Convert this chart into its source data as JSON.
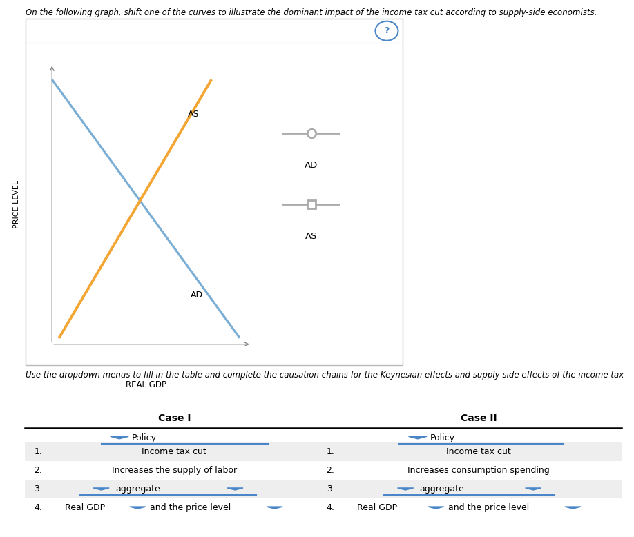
{
  "title_text": "On the following graph, shift one of the curves to illustrate the dominant impact of the income tax cut according to supply-side economists.",
  "xlabel": "REAL GDP",
  "ylabel": "PRICE LEVEL",
  "ad_color": "#7baed4",
  "as_color": "#f4a634",
  "ad_label": "AD",
  "as_label": "AS",
  "legend_ad_label": "AD",
  "legend_as_label": "AS",
  "legend_line_color": "#aaaaaa",
  "question_circle_color": "#4a86c8",
  "box_border": "#cccccc",
  "subtitle_text": "Use the dropdown menus to fill in the table and complete the causation chains for the Keynesian effects and supply-side effects of the income tax",
  "col1_header": "Policy",
  "col2_header": "Policy",
  "row1_col1": "Income tax cut",
  "row1_col2": "Income tax cut",
  "row2_col1": "Increases the supply of labor",
  "row2_col2": "Increases consumption spending",
  "row3_col1": "aggregate",
  "row3_col2": "aggregate",
  "row4_left": "Real GDP",
  "row4_right": "Real GDP",
  "row4_mid1": "and the price level",
  "row4_mid2": "and the price level",
  "dropdown_color": "#4a86c8",
  "row_bg_shaded": "#eeeeee",
  "case1_header": "Case I",
  "case2_header": "Case II"
}
